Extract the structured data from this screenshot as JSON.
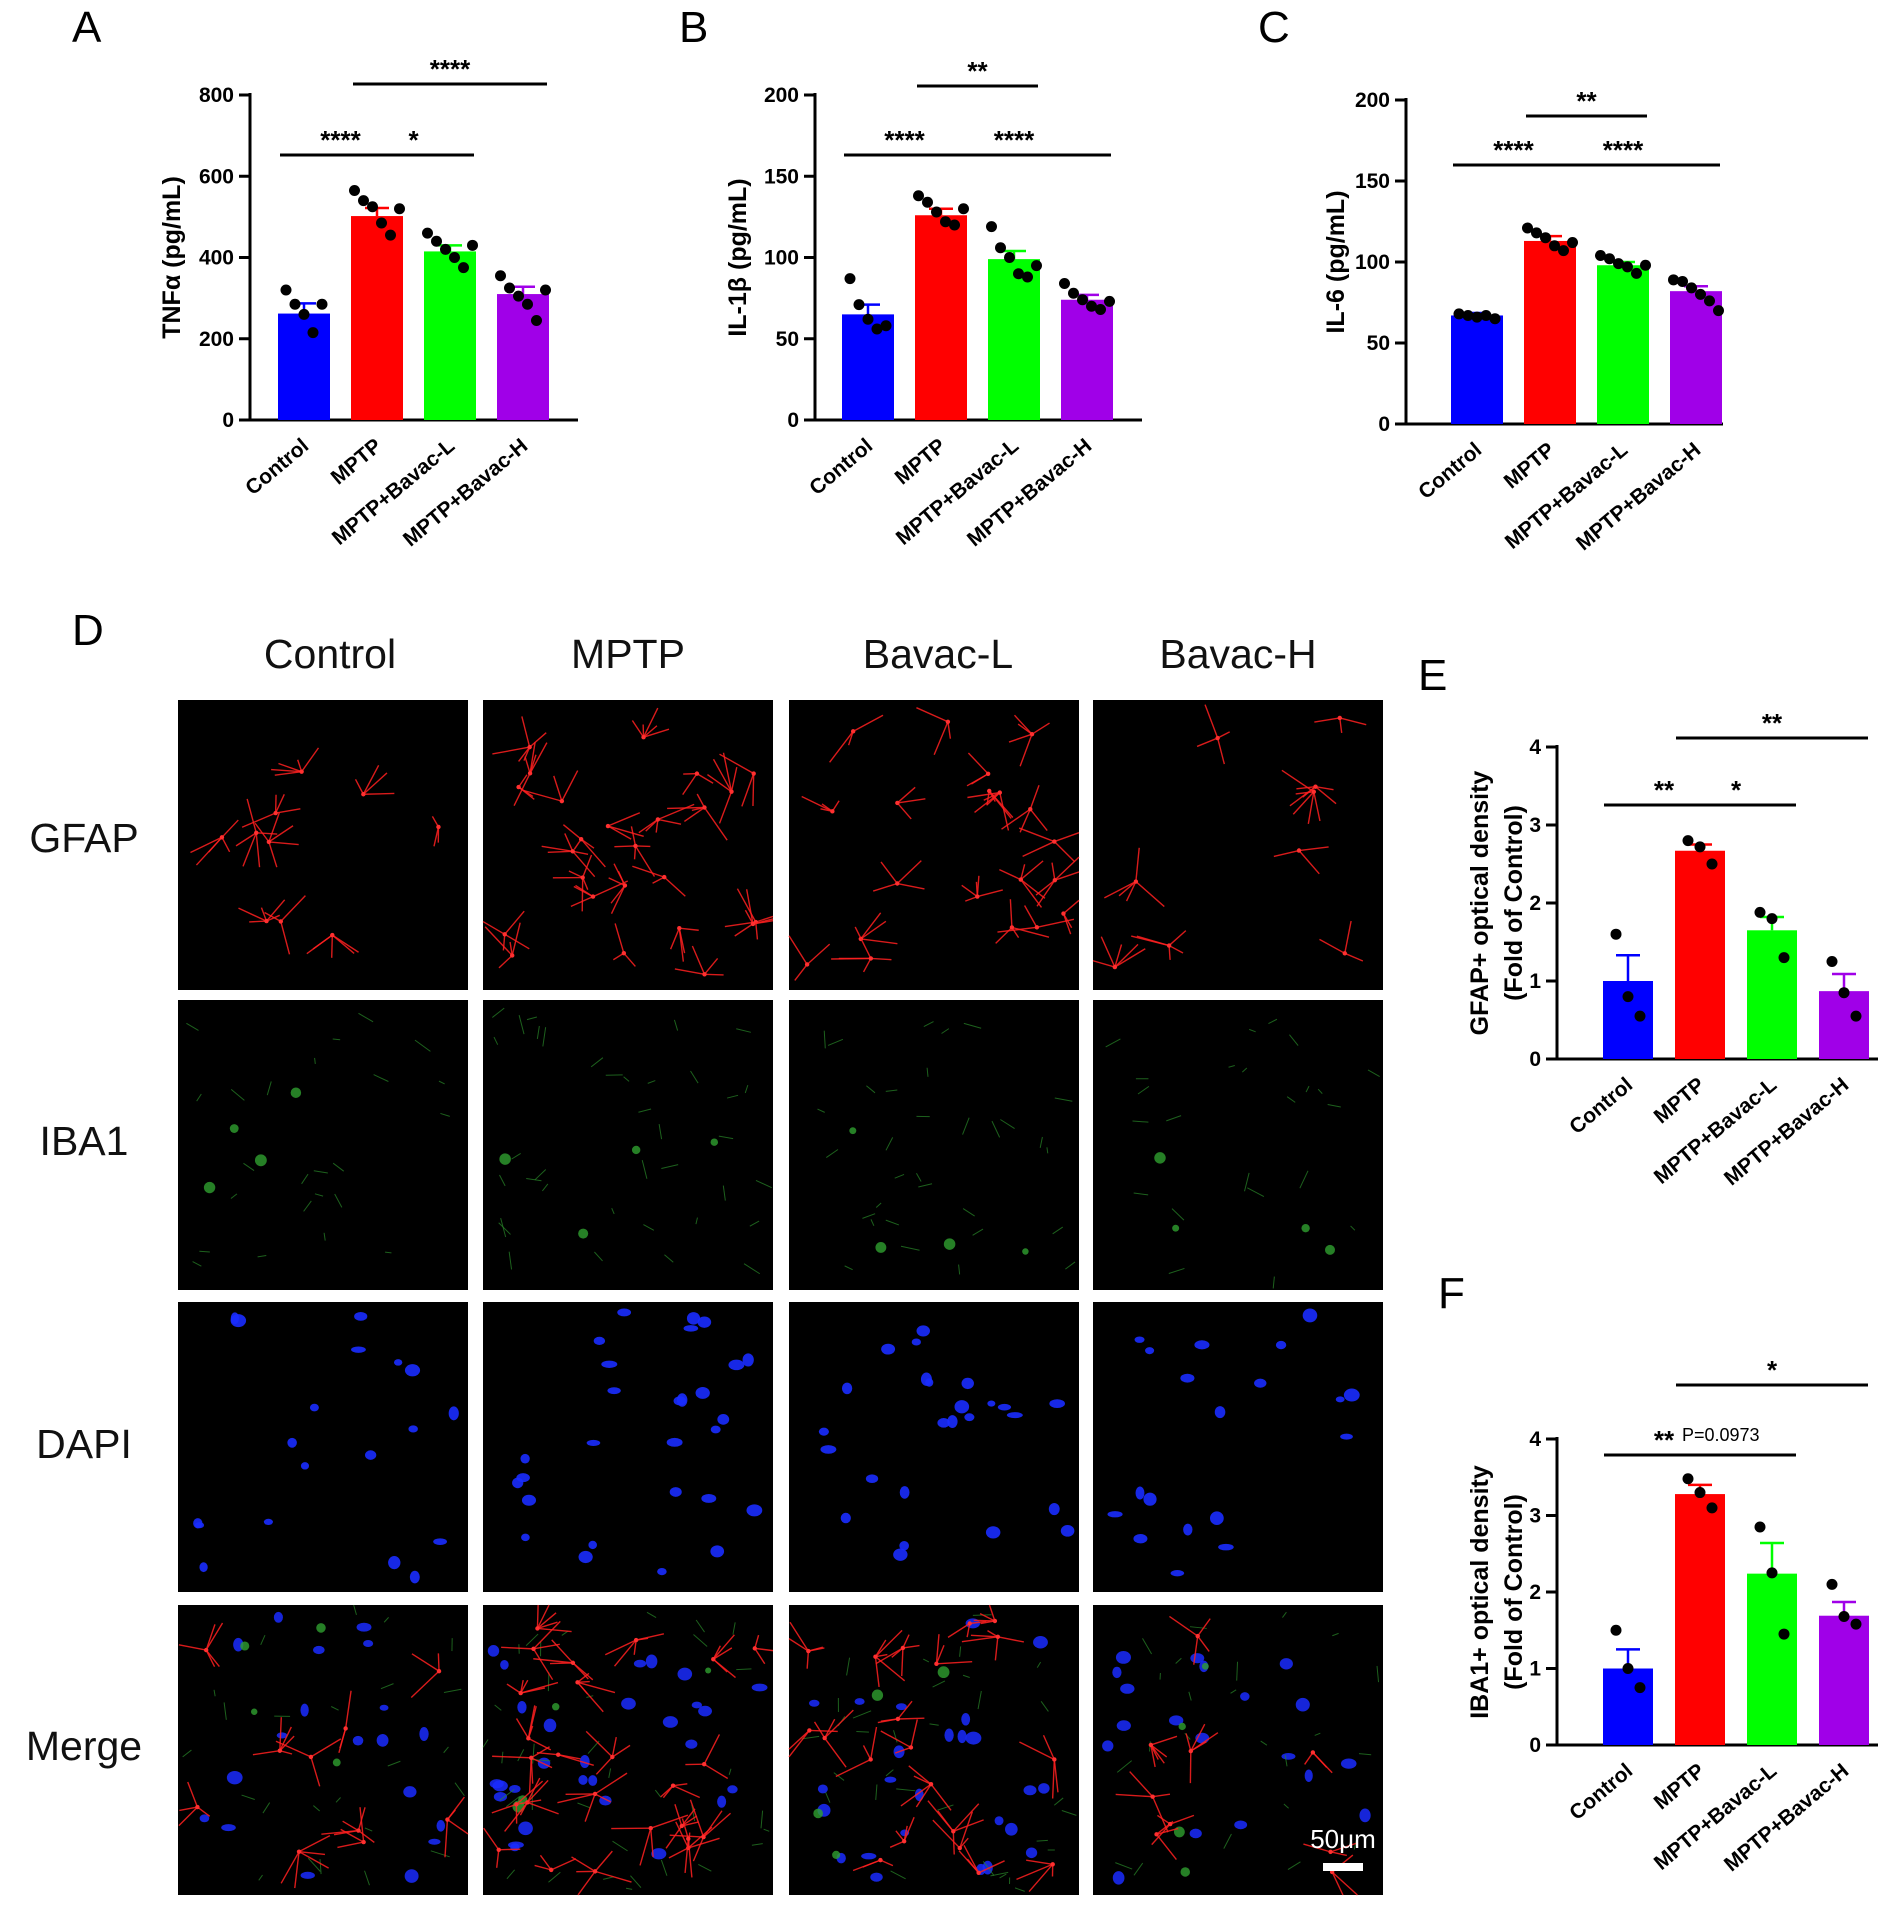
{
  "panels": {
    "A": "A",
    "B": "B",
    "C": "C",
    "D": "D",
    "E": "E",
    "F": "F"
  },
  "colors": {
    "Control": "#0000ff",
    "MPTP": "#ff0000",
    "MPTP+Bavac-L": "#00ff00",
    "MPTP+Bavac-H": "#a000e8"
  },
  "chart_data": [
    {
      "id": "A",
      "type": "bar",
      "title": "",
      "ylabel": "TNFα (pg/mL)",
      "categories": [
        "Control",
        "MPTP",
        "MPTP+Bavac-L",
        "MPTP+Bavac-H"
      ],
      "values": [
        262,
        502,
        415,
        310
      ],
      "errors": [
        25,
        20,
        15,
        18
      ],
      "points": [
        [
          320,
          285,
          260,
          215,
          285
        ],
        [
          565,
          540,
          525,
          485,
          455,
          520
        ],
        [
          460,
          440,
          420,
          400,
          375,
          430
        ],
        [
          355,
          325,
          305,
          285,
          245,
          320
        ]
      ],
      "ylim": [
        0,
        800
      ],
      "yticks": [
        0,
        200,
        400,
        600,
        800
      ],
      "significance": [
        {
          "from": 0,
          "to": 1,
          "label": "****",
          "level": 1
        },
        {
          "from": 1,
          "to": 2,
          "label": "*",
          "level": 1
        },
        {
          "from": 1,
          "to": 3,
          "label": "****",
          "level": 2
        }
      ]
    },
    {
      "id": "B",
      "type": "bar",
      "title": "",
      "ylabel": "IL-1β (pg/mL)",
      "categories": [
        "Control",
        "MPTP",
        "MPTP+Bavac-L",
        "MPTP+Bavac-H"
      ],
      "values": [
        65,
        126,
        99,
        74
      ],
      "errors": [
        6,
        4,
        5,
        3
      ],
      "points": [
        [
          87,
          71,
          62,
          56,
          58
        ],
        [
          138,
          134,
          128,
          122,
          120,
          130
        ],
        [
          119,
          106,
          100,
          90,
          88,
          95
        ],
        [
          84,
          78,
          74,
          70,
          68,
          73
        ]
      ],
      "ylim": [
        0,
        200
      ],
      "yticks": [
        0,
        50,
        100,
        150,
        200
      ],
      "significance": [
        {
          "from": 0,
          "to": 1,
          "label": "****",
          "level": 1
        },
        {
          "from": 1,
          "to": 3,
          "label": "****",
          "level": 1
        },
        {
          "from": 1,
          "to": 2,
          "label": "**",
          "level": 2
        }
      ]
    },
    {
      "id": "C",
      "type": "bar",
      "title": "",
      "ylabel": "IL-6 (pg/mL)",
      "categories": [
        "Control",
        "MPTP",
        "MPTP+Bavac-L",
        "MPTP+Bavac-H"
      ],
      "values": [
        67,
        113,
        98,
        82
      ],
      "errors": [
        1.5,
        3,
        2,
        3
      ],
      "points": [
        [
          68,
          67,
          66,
          67,
          65
        ],
        [
          121,
          118,
          115,
          110,
          107,
          112
        ],
        [
          104,
          102,
          99,
          97,
          93,
          98
        ],
        [
          89,
          88,
          84,
          80,
          76,
          70
        ]
      ],
      "ylim": [
        0,
        200
      ],
      "yticks": [
        0,
        50,
        100,
        150,
        200
      ],
      "significance": [
        {
          "from": 0,
          "to": 1,
          "label": "****",
          "level": 1
        },
        {
          "from": 1,
          "to": 3,
          "label": "****",
          "level": 1
        },
        {
          "from": 1,
          "to": 2,
          "label": "**",
          "level": 2
        }
      ]
    },
    {
      "id": "E",
      "type": "bar",
      "title": "",
      "ylabel": [
        "GFAP+ optical density",
        "(Fold of Control)"
      ],
      "categories": [
        "Control",
        "MPTP",
        "MPTP+Bavac-L",
        "MPTP+Bavac-H"
      ],
      "values": [
        1.0,
        2.67,
        1.65,
        0.87
      ],
      "errors": [
        0.33,
        0.08,
        0.17,
        0.22
      ],
      "points": [
        [
          1.6,
          0.8,
          0.55
        ],
        [
          2.8,
          2.72,
          2.5
        ],
        [
          1.88,
          1.8,
          1.3
        ],
        [
          1.25,
          0.85,
          0.55
        ]
      ],
      "ylim": [
        0,
        4
      ],
      "yticks": [
        0,
        1,
        2,
        3,
        4
      ],
      "significance": [
        {
          "from": 0,
          "to": 1,
          "label": "**",
          "level": 1
        },
        {
          "from": 1,
          "to": 2,
          "label": "*",
          "level": 1
        },
        {
          "from": 1,
          "to": 3,
          "label": "**",
          "level": 2
        }
      ]
    },
    {
      "id": "F",
      "type": "bar",
      "title": "",
      "ylabel": [
        "IBA1+ optical density",
        "(Fold of Control)"
      ],
      "categories": [
        "Control",
        "MPTP",
        "MPTP+Bavac-L",
        "MPTP+Bavac-H"
      ],
      "values": [
        1.0,
        3.28,
        2.24,
        1.69
      ],
      "errors": [
        0.25,
        0.12,
        0.4,
        0.18
      ],
      "points": [
        [
          1.5,
          1.0,
          0.75
        ],
        [
          3.48,
          3.3,
          3.1
        ],
        [
          2.85,
          2.25,
          1.45
        ],
        [
          2.1,
          1.68,
          1.58
        ]
      ],
      "ylim": [
        0,
        4
      ],
      "yticks": [
        0,
        1,
        2,
        3,
        4
      ],
      "significance": [
        {
          "from": 0,
          "to": 1,
          "label": "**",
          "level": 1
        },
        {
          "from": 1,
          "to": 2,
          "label": "P=0.0973",
          "level": 1
        },
        {
          "from": 1,
          "to": 3,
          "label": "*",
          "level": 2
        }
      ]
    }
  ],
  "micrograph_grid": {
    "columns": [
      "Control",
      "MPTP",
      "Bavac-L",
      "Bavac-H"
    ],
    "rows": [
      "GFAP",
      "IBA1",
      "DAPI",
      "Merge"
    ],
    "scale_bar": "50μm"
  }
}
